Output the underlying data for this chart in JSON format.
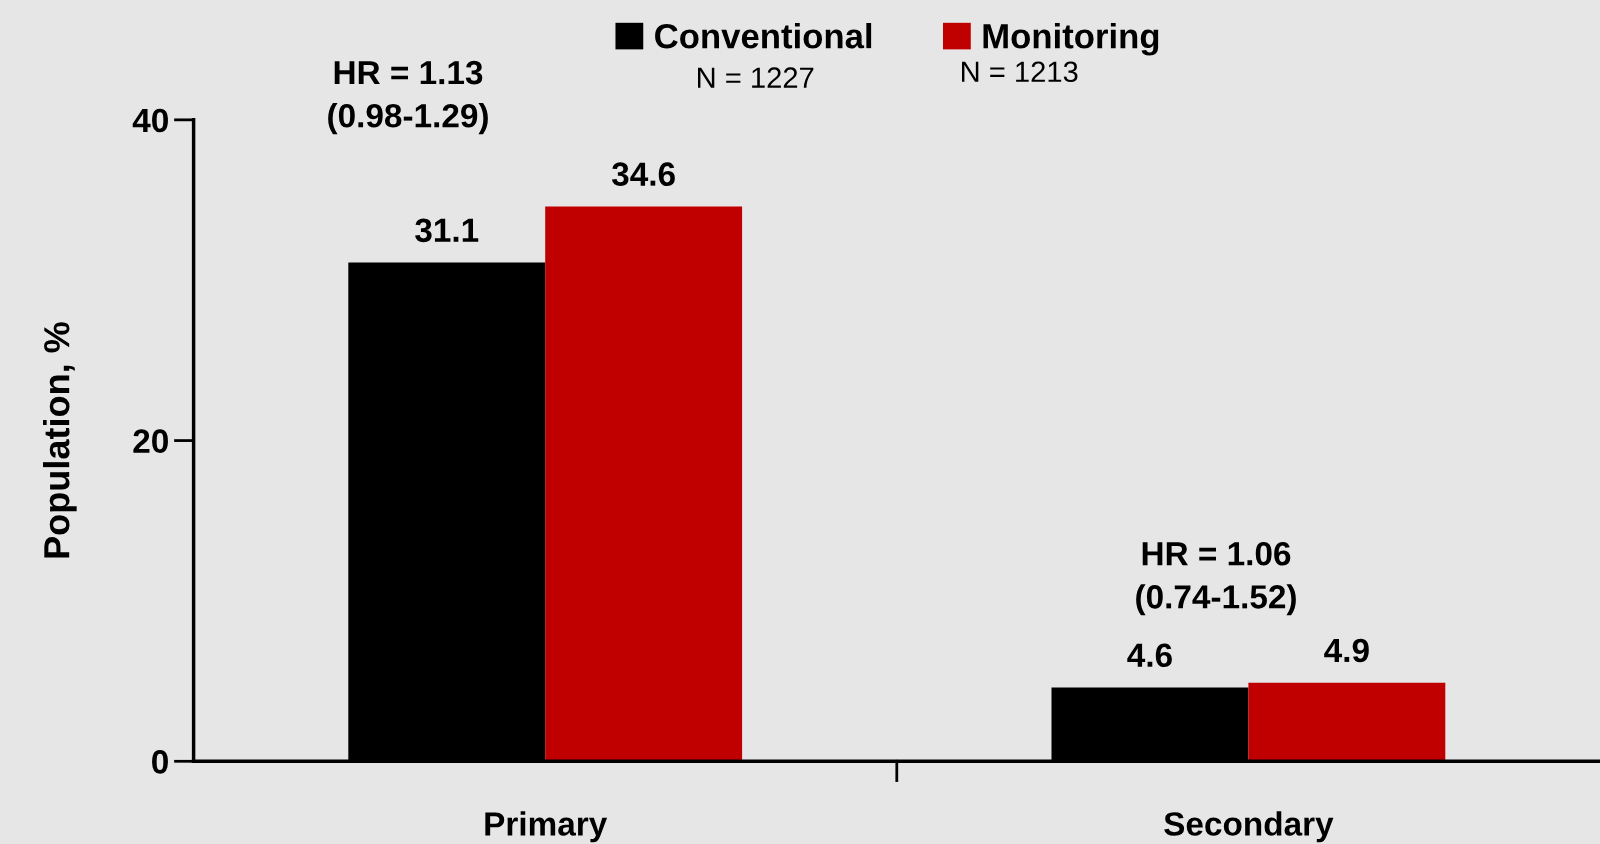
{
  "chart_data": {
    "type": "bar",
    "ylabel": "Population, %",
    "categories": [
      "Primary",
      "Secondary"
    ],
    "series": [
      {
        "name": "Conventional",
        "color": "#000000",
        "values": [
          31.1,
          4.6
        ]
      },
      {
        "name": "Monitoring",
        "color": "#c00000",
        "values": [
          34.6,
          4.9
        ]
      }
    ],
    "ylim": [
      0,
      40
    ],
    "yticks": [
      0,
      20,
      40
    ],
    "data_labels": true,
    "legend": "top",
    "grid": false,
    "annotations": [
      "HR = 1.13\n(0.98-1.29)",
      "HR = 1.06\n(0.74-1.52)",
      "N = 1227",
      "N = 1213"
    ]
  }
}
